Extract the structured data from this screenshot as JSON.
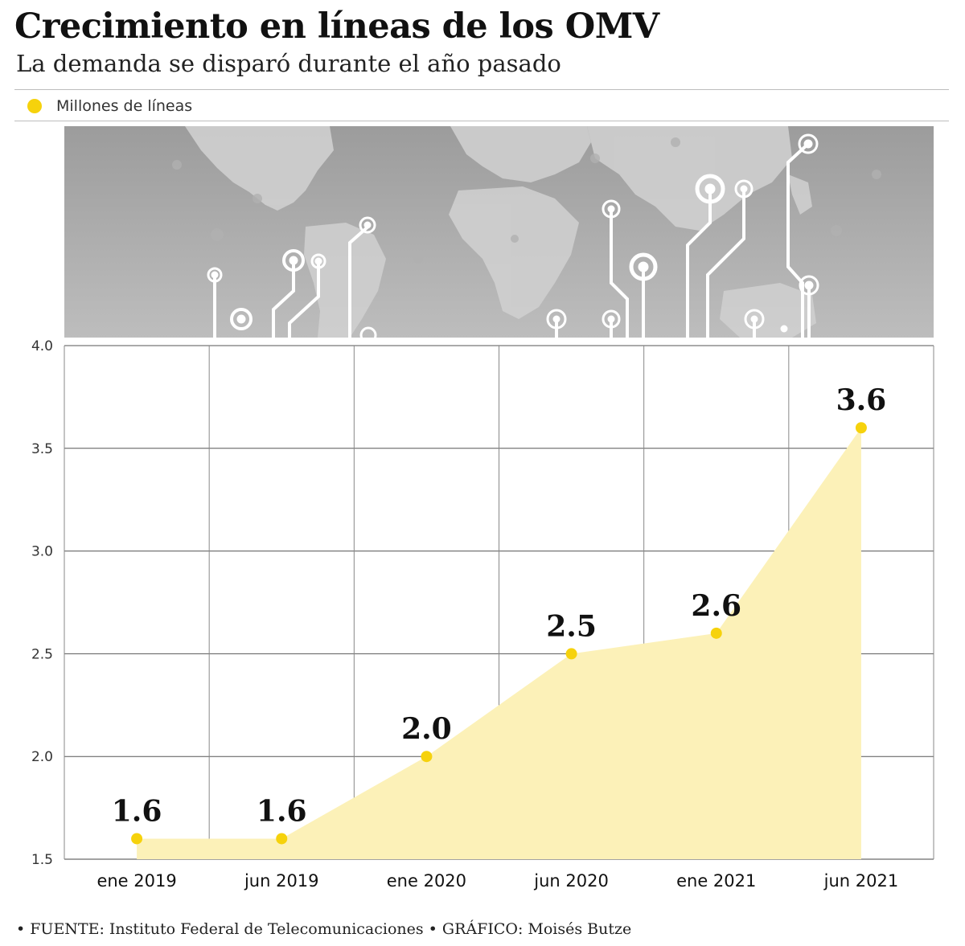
{
  "header": {
    "title": "Crecimiento en líneas de los OMV",
    "subtitle": "La demanda se disparó durante el año pasado"
  },
  "legend": {
    "label": "Millones de líneas",
    "color": "#f6d20c"
  },
  "chart_data": {
    "type": "area",
    "categories": [
      "ene 2019",
      "jun 2019",
      "ene 2020",
      "jun 2020",
      "ene 2021",
      "jun 2021"
    ],
    "series": [
      {
        "name": "Millones de líneas",
        "values": [
          1.6,
          1.6,
          2.0,
          2.5,
          2.6,
          3.6
        ],
        "labels": [
          "1.6",
          "1.6",
          "2.0",
          "2.5",
          "2.6",
          "3.6"
        ]
      }
    ],
    "ylim": [
      1.5,
      4.0
    ],
    "yticks": [
      "4.0",
      "3.5",
      "3.0",
      "2.5",
      "2.0",
      "1.5"
    ],
    "ytick_values": [
      4.0,
      3.5,
      3.0,
      2.5,
      2.0,
      1.5
    ],
    "grid": true,
    "point_color": "#f6d20c",
    "area_color": "#fcf1b8"
  },
  "footer": {
    "source": "• FUENTE: Instituto Federal de Telecomunicaciones • GRÁFICO: Moisés Butze"
  }
}
